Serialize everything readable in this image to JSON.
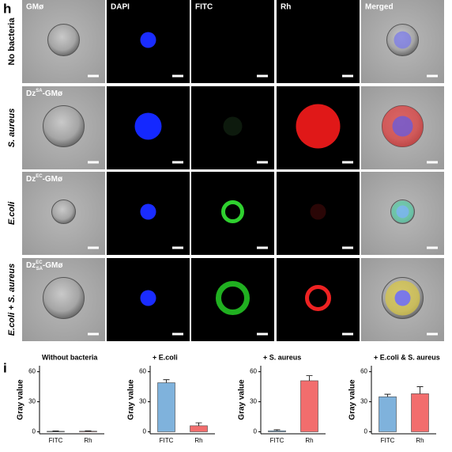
{
  "panel_h": {
    "label": "h",
    "columns": [
      "GMø",
      "DAPI",
      "FITC",
      "Rh",
      "Merged"
    ],
    "rows": [
      "No bacteria",
      "S. aureus",
      "E.coli",
      "E.coli + S. aureus"
    ],
    "cell_tags": [
      {
        "row": 1,
        "base": "Dz",
        "sup": "SA",
        "suffix": "-GMø"
      },
      {
        "row": 2,
        "base": "Dz",
        "sup": "EC",
        "suffix": "-GMø"
      },
      {
        "row": 3,
        "base": "Dz",
        "sup": "EC",
        "sub": "SA",
        "suffix": "-GMø"
      }
    ]
  },
  "panel_i": {
    "label": "i"
  },
  "chart_data": [
    {
      "type": "bar",
      "title": "Without bacteria",
      "ylabel": "Gray value",
      "categories": [
        "FITC",
        "Rh"
      ],
      "values": [
        0.5,
        0.6
      ],
      "errors": [
        0.3,
        0.3
      ],
      "colors": [
        "#7fb2dc",
        "#f26d6d"
      ],
      "ylim": [
        -2,
        66
      ],
      "yticks": [
        0,
        30,
        60
      ]
    },
    {
      "type": "bar",
      "title": "+ E.coli",
      "ylabel": "Gray value",
      "categories": [
        "FITC",
        "Rh"
      ],
      "values": [
        49,
        6
      ],
      "errors": [
        3,
        3
      ],
      "colors": [
        "#7fb2dc",
        "#f26d6d"
      ],
      "ylim": [
        -2,
        66
      ],
      "yticks": [
        0,
        30,
        60
      ]
    },
    {
      "type": "bar",
      "title": "+ S. aureus",
      "ylabel": "Gray value",
      "categories": [
        "FITC",
        "Rh"
      ],
      "values": [
        1,
        51
      ],
      "errors": [
        1,
        5
      ],
      "colors": [
        "#7fb2dc",
        "#f26d6d"
      ],
      "ylim": [
        -2,
        66
      ],
      "yticks": [
        0,
        30,
        60
      ]
    },
    {
      "type": "bar",
      "title": "+ E.coli & S. aureus",
      "ylabel": "Gray value",
      "categories": [
        "FITC",
        "Rh"
      ],
      "values": [
        35,
        38
      ],
      "errors": [
        2.5,
        7
      ],
      "colors": [
        "#7fb2dc",
        "#f26d6d"
      ],
      "ylim": [
        -2,
        66
      ],
      "yticks": [
        0,
        30,
        60
      ]
    }
  ]
}
